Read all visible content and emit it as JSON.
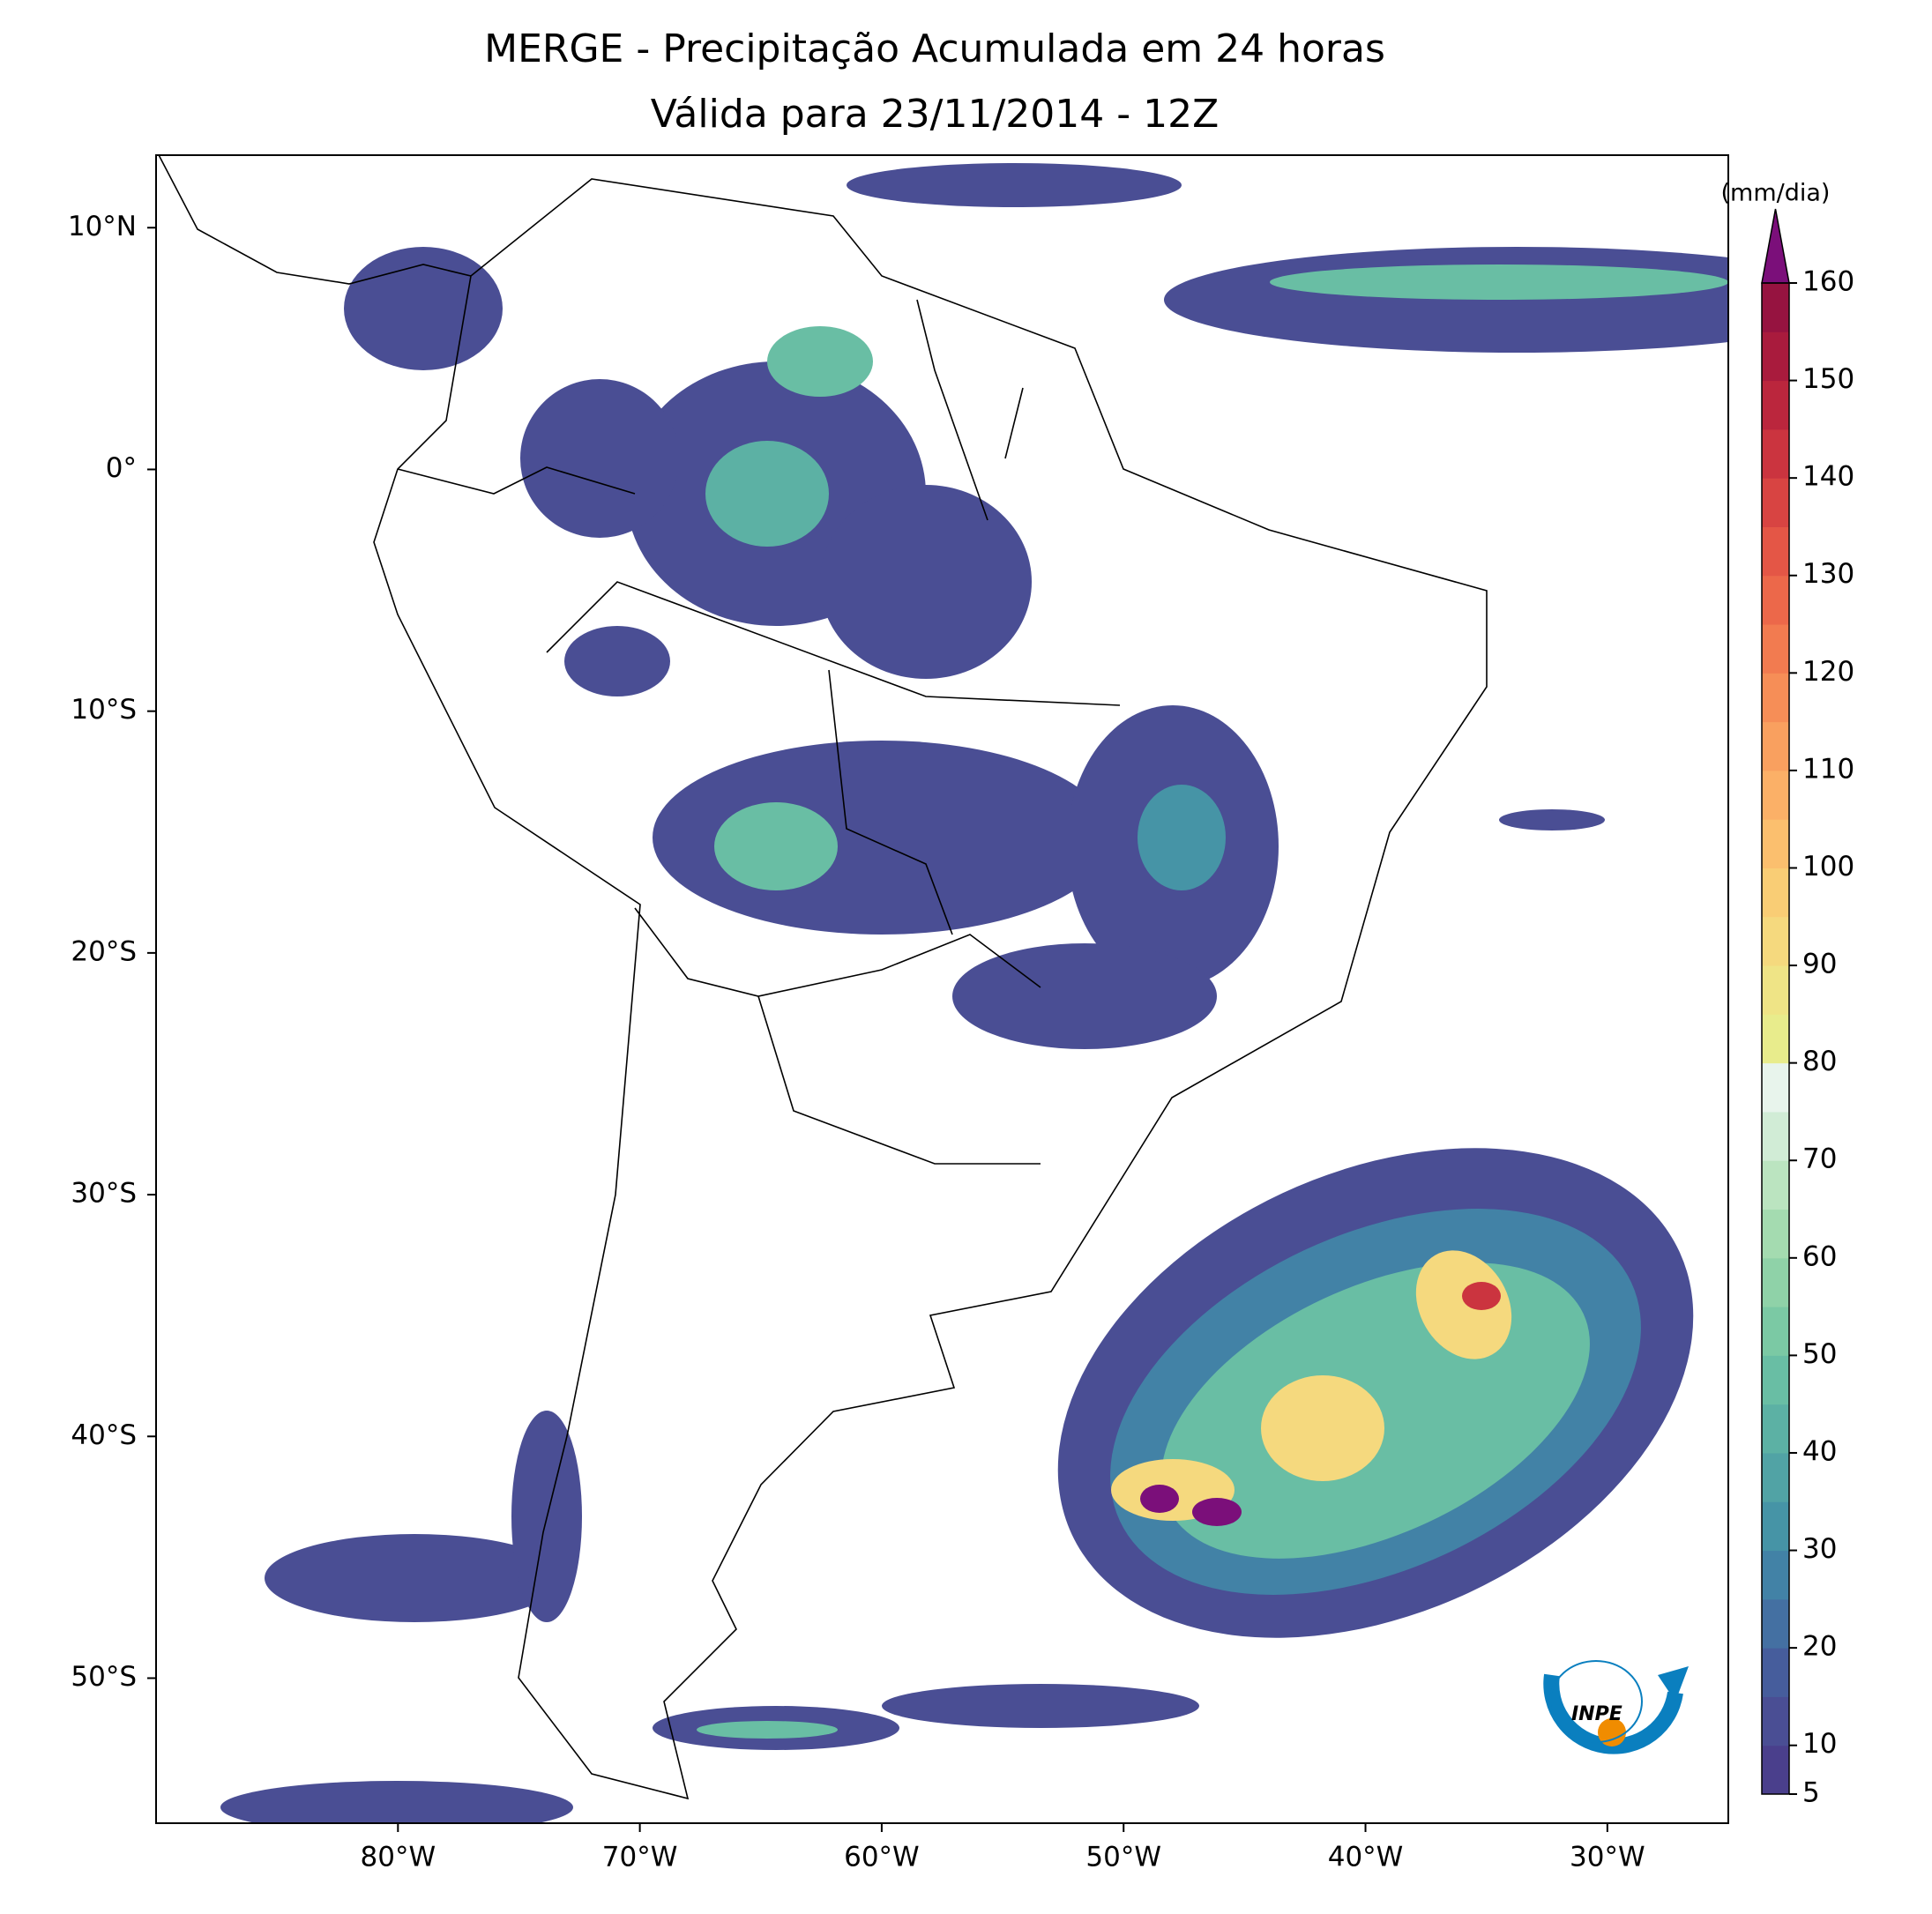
{
  "map": {
    "title": [
      "MERGE - Precipitação Acumulada em 24 horas",
      "Válida para 23/11/2014 - 12Z"
    ],
    "xlim": [
      -90,
      -25
    ],
    "ylim": [
      -56,
      13
    ],
    "xticks": [
      {
        "value": -80,
        "label": "80°W"
      },
      {
        "value": -70,
        "label": "70°W"
      },
      {
        "value": -60,
        "label": "60°W"
      },
      {
        "value": -50,
        "label": "50°W"
      },
      {
        "value": -40,
        "label": "40°W"
      },
      {
        "value": -30,
        "label": "30°W"
      }
    ],
    "yticks": [
      {
        "value": 10,
        "label": "10°N"
      },
      {
        "value": 0,
        "label": "0°"
      },
      {
        "value": -10,
        "label": "10°S"
      },
      {
        "value": -20,
        "label": "20°S"
      },
      {
        "value": -30,
        "label": "30°S"
      },
      {
        "value": -40,
        "label": "40°S"
      },
      {
        "value": -50,
        "label": "50°S"
      }
    ],
    "colorbar": {
      "label": "(mm/dia)",
      "range": [
        5,
        160
      ],
      "ticks": [
        5,
        10,
        20,
        30,
        40,
        50,
        60,
        70,
        80,
        90,
        100,
        110,
        120,
        130,
        140,
        150,
        160
      ],
      "extend_color": "#7b0f7a",
      "colors": [
        "#4a3f8c",
        "#4a4e94",
        "#465d9c",
        "#4470a2",
        "#4282a6",
        "#4694a6",
        "#51a3a5",
        "#5cb1a4",
        "#69bea4",
        "#7bc9a4",
        "#8fd2a8",
        "#a4dbb0",
        "#bbe4c0",
        "#d1ecd6",
        "#e8f4ec",
        "#e8ec8c",
        "#efe486",
        "#f5d97e",
        "#f9cd75",
        "#fbbf6e",
        "#fbb067",
        "#f9a05f",
        "#f68e57",
        "#f27b50",
        "#ec684a",
        "#e45646",
        "#d84442",
        "#cb343f",
        "#bb263d",
        "#a91b3d",
        "#961340"
      ]
    },
    "logo": "INPE"
  }
}
